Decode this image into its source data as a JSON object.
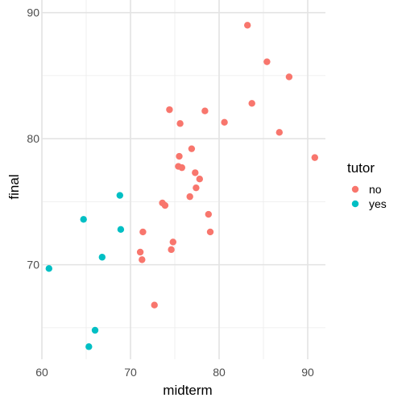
{
  "chart_data": {
    "type": "scatter",
    "xlabel": "midterm",
    "ylabel": "final",
    "xlim": [
      60,
      92
    ],
    "ylim": [
      62.5,
      91
    ],
    "x_ticks": [
      60,
      70,
      80,
      90
    ],
    "y_ticks": [
      70,
      80,
      90
    ],
    "grid": true,
    "legend": {
      "title": "tutor",
      "placement": "right",
      "entries": [
        {
          "label": "no",
          "color": "#F8766D"
        },
        {
          "label": "yes",
          "color": "#00BFC4"
        }
      ]
    },
    "series": [
      {
        "name": "no",
        "color": "#F8766D",
        "points": [
          [
            83.2,
            89.0
          ],
          [
            85.4,
            86.1
          ],
          [
            87.9,
            84.9
          ],
          [
            83.7,
            82.8
          ],
          [
            74.4,
            82.3
          ],
          [
            78.4,
            82.2
          ],
          [
            80.6,
            81.3
          ],
          [
            75.6,
            81.2
          ],
          [
            86.8,
            80.5
          ],
          [
            76.9,
            79.2
          ],
          [
            75.5,
            78.6
          ],
          [
            90.8,
            78.5
          ],
          [
            75.4,
            77.8
          ],
          [
            75.8,
            77.7
          ],
          [
            77.3,
            77.3
          ],
          [
            77.8,
            76.8
          ],
          [
            77.4,
            76.1
          ],
          [
            76.7,
            75.4
          ],
          [
            73.6,
            74.9
          ],
          [
            73.9,
            74.7
          ],
          [
            78.8,
            74.0
          ],
          [
            71.4,
            72.6
          ],
          [
            79.0,
            72.6
          ],
          [
            74.8,
            71.8
          ],
          [
            74.6,
            71.2
          ],
          [
            71.1,
            71.0
          ],
          [
            71.3,
            70.4
          ],
          [
            72.7,
            66.8
          ]
        ]
      },
      {
        "name": "yes",
        "color": "#00BFC4",
        "points": [
          [
            68.8,
            75.5
          ],
          [
            64.7,
            73.6
          ],
          [
            68.9,
            72.8
          ],
          [
            66.8,
            70.6
          ],
          [
            60.8,
            69.7
          ],
          [
            66.0,
            64.8
          ],
          [
            65.3,
            63.5
          ]
        ]
      }
    ]
  }
}
